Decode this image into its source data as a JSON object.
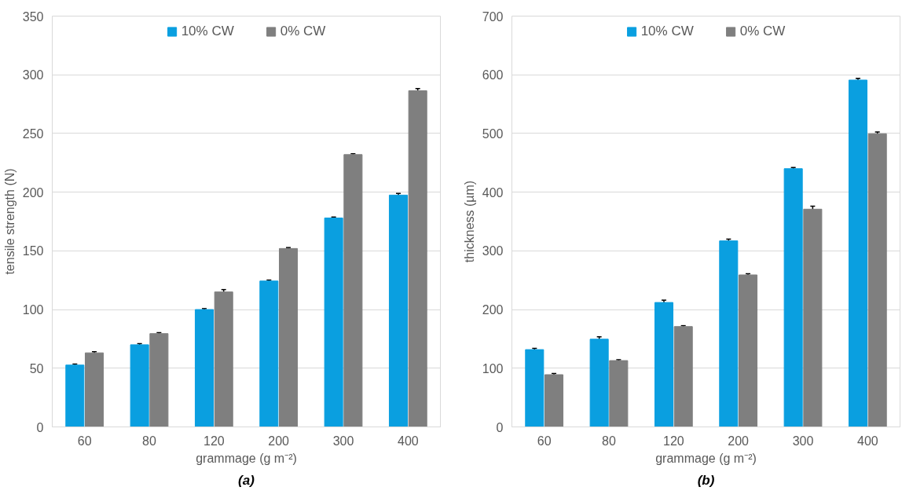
{
  "chart_data": [
    {
      "type": "bar",
      "categories": [
        "60",
        "80",
        "120",
        "200",
        "300",
        "400"
      ],
      "xlabel": "grammage (g m⁻²)",
      "ylabel": "tensile strength (N)",
      "ylim": [
        0,
        350
      ],
      "yticks": [
        0,
        50,
        100,
        150,
        200,
        250,
        300,
        350
      ],
      "grid": "y",
      "legend": "top",
      "annotations": [
        "(a)"
      ],
      "series": [
        {
          "name": "10% CW",
          "color": "#0a9fe0",
          "values": [
            52.7,
            70,
            100,
            124.3,
            178,
            197.5
          ],
          "errors": [
            0.8,
            1,
            0.8,
            0.8,
            0.8,
            1.5
          ]
        },
        {
          "name": "0% CW",
          "color": "#7f7f7f",
          "values": [
            63.1,
            79.5,
            115,
            152,
            232,
            286.4
          ],
          "errors": [
            1,
            0.8,
            2,
            0.8,
            0.8,
            1.8
          ]
        }
      ]
    },
    {
      "type": "bar",
      "categories": [
        "60",
        "80",
        "120",
        "200",
        "300",
        "400"
      ],
      "xlabel": "grammage (g m⁻²)",
      "ylabel": "thickness (µm)",
      "ylim": [
        0,
        700
      ],
      "yticks": [
        0,
        100,
        200,
        300,
        400,
        500,
        600,
        700
      ],
      "grid": "y",
      "legend": "top",
      "annotations": [
        "(b)"
      ],
      "series": [
        {
          "name": "10% CW",
          "color": "#0a9fe0",
          "values": [
            131.7,
            149.5,
            212,
            317,
            440,
            591
          ],
          "errors": [
            2,
            4,
            4,
            3,
            2,
            3
          ]
        },
        {
          "name": "0% CW",
          "color": "#7f7f7f",
          "values": [
            89,
            113,
            171,
            259,
            371,
            499.5
          ],
          "errors": [
            2,
            1.5,
            1.5,
            2,
            5,
            3
          ]
        }
      ]
    }
  ]
}
